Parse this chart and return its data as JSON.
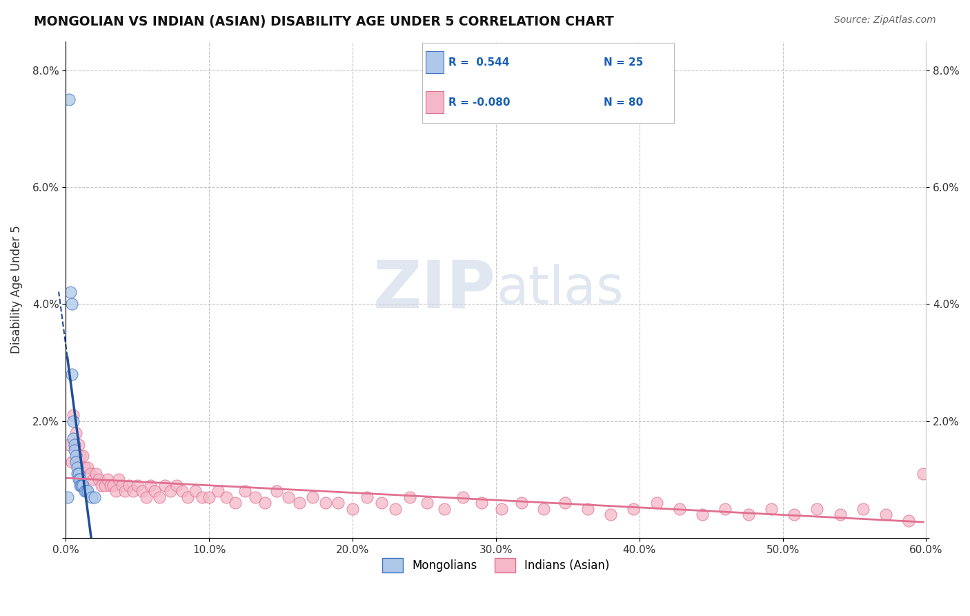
{
  "title": "MONGOLIAN VS INDIAN (ASIAN) DISABILITY AGE UNDER 5 CORRELATION CHART",
  "source": "Source: ZipAtlas.com",
  "ylabel": "Disability Age Under 5",
  "xlim": [
    0.0,
    0.6
  ],
  "ylim": [
    0.0,
    0.085
  ],
  "xticks": [
    0.0,
    0.1,
    0.2,
    0.3,
    0.4,
    0.5,
    0.6
  ],
  "xticklabels": [
    "0.0%",
    "10.0%",
    "20.0%",
    "30.0%",
    "40.0%",
    "50.0%",
    "60.0%"
  ],
  "yticks": [
    0.0,
    0.02,
    0.04,
    0.06,
    0.08
  ],
  "yticklabels_left": [
    "",
    "2.0%",
    "4.0%",
    "6.0%",
    "8.0%"
  ],
  "yticklabels_right": [
    "",
    "2.0%",
    "4.0%",
    "6.0%",
    "8.0%"
  ],
  "mongolian_r": 0.544,
  "mongolian_n": 25,
  "indian_r": -0.08,
  "indian_n": 80,
  "mongolian_color": "#adc8e8",
  "mongolian_edge_color": "#4472c4",
  "mongolian_line_color": "#1f4e9a",
  "indian_color": "#f4b8c8",
  "indian_edge_color": "#e07090",
  "indian_line_color": "#e07090",
  "background_color": "#ffffff",
  "grid_color": "#c8c8c8",
  "watermark_color": "#ccd8e8",
  "mongolian_x": [
    0.001,
    0.002,
    0.003,
    0.004,
    0.004,
    0.005,
    0.005,
    0.006,
    0.006,
    0.007,
    0.007,
    0.008,
    0.008,
    0.009,
    0.009,
    0.01,
    0.01,
    0.011,
    0.011,
    0.012,
    0.013,
    0.014,
    0.015,
    0.018,
    0.02
  ],
  "mongolian_y": [
    0.007,
    0.075,
    0.042,
    0.04,
    0.028,
    0.02,
    0.017,
    0.016,
    0.015,
    0.014,
    0.013,
    0.012,
    0.011,
    0.011,
    0.01,
    0.01,
    0.009,
    0.009,
    0.009,
    0.009,
    0.008,
    0.008,
    0.008,
    0.007,
    0.007
  ],
  "indian_x": [
    0.002,
    0.004,
    0.005,
    0.007,
    0.008,
    0.009,
    0.01,
    0.012,
    0.013,
    0.015,
    0.017,
    0.019,
    0.021,
    0.023,
    0.025,
    0.027,
    0.029,
    0.031,
    0.033,
    0.035,
    0.037,
    0.039,
    0.041,
    0.044,
    0.047,
    0.05,
    0.053,
    0.056,
    0.059,
    0.062,
    0.065,
    0.069,
    0.073,
    0.077,
    0.081,
    0.085,
    0.09,
    0.095,
    0.1,
    0.106,
    0.112,
    0.118,
    0.125,
    0.132,
    0.139,
    0.147,
    0.155,
    0.163,
    0.172,
    0.181,
    0.19,
    0.2,
    0.21,
    0.22,
    0.23,
    0.24,
    0.252,
    0.264,
    0.277,
    0.29,
    0.304,
    0.318,
    0.333,
    0.348,
    0.364,
    0.38,
    0.396,
    0.412,
    0.428,
    0.444,
    0.46,
    0.476,
    0.492,
    0.508,
    0.524,
    0.54,
    0.556,
    0.572,
    0.588,
    0.598
  ],
  "indian_y": [
    0.016,
    0.013,
    0.021,
    0.018,
    0.013,
    0.016,
    0.014,
    0.014,
    0.012,
    0.012,
    0.011,
    0.01,
    0.011,
    0.01,
    0.009,
    0.009,
    0.01,
    0.009,
    0.009,
    0.008,
    0.01,
    0.009,
    0.008,
    0.009,
    0.008,
    0.009,
    0.008,
    0.007,
    0.009,
    0.008,
    0.007,
    0.009,
    0.008,
    0.009,
    0.008,
    0.007,
    0.008,
    0.007,
    0.007,
    0.008,
    0.007,
    0.006,
    0.008,
    0.007,
    0.006,
    0.008,
    0.007,
    0.006,
    0.007,
    0.006,
    0.006,
    0.005,
    0.007,
    0.006,
    0.005,
    0.007,
    0.006,
    0.005,
    0.007,
    0.006,
    0.005,
    0.006,
    0.005,
    0.006,
    0.005,
    0.004,
    0.005,
    0.006,
    0.005,
    0.004,
    0.005,
    0.004,
    0.005,
    0.004,
    0.005,
    0.004,
    0.005,
    0.004,
    0.003,
    0.011
  ],
  "legend_r1": "R =  0.544",
  "legend_n1": "N = 25",
  "legend_r2": "R = -0.080",
  "legend_n2": "N = 80"
}
